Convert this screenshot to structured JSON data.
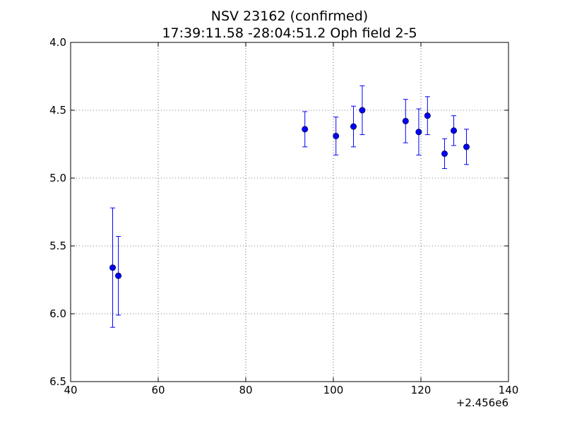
{
  "chart_data": {
    "type": "scatter",
    "title": "NSV 23162 (confirmed)",
    "subtitle": "17:39:11.58 -28:04:51.2 Oph field 2-5",
    "xlabel": "",
    "ylabel": "",
    "x_offset_label": "+2.456e6",
    "xlim": [
      40,
      140
    ],
    "ylim": [
      6.5,
      4.0
    ],
    "y_inverted": true,
    "grid": true,
    "x_ticks": [
      "40",
      "60",
      "80",
      "100",
      "120",
      "140"
    ],
    "y_ticks": [
      "4.0",
      "4.5",
      "5.0",
      "5.5",
      "6.0",
      "6.5"
    ],
    "marker_color": "#0000ff",
    "series": [
      {
        "points": [
          {
            "x": 49.6,
            "y": 5.66,
            "err": 0.44
          },
          {
            "x": 50.9,
            "y": 5.72,
            "err": 0.29
          },
          {
            "x": 93.5,
            "y": 4.64,
            "err": 0.13
          },
          {
            "x": 100.6,
            "y": 4.69,
            "err": 0.14
          },
          {
            "x": 104.6,
            "y": 4.62,
            "err": 0.15
          },
          {
            "x": 106.6,
            "y": 4.5,
            "err": 0.18
          },
          {
            "x": 116.5,
            "y": 4.58,
            "err": 0.16
          },
          {
            "x": 119.5,
            "y": 4.66,
            "err": 0.17
          },
          {
            "x": 121.5,
            "y": 4.54,
            "err": 0.14
          },
          {
            "x": 125.4,
            "y": 4.82,
            "err": 0.11
          },
          {
            "x": 127.5,
            "y": 4.65,
            "err": 0.11
          },
          {
            "x": 130.4,
            "y": 4.77,
            "err": 0.13
          }
        ]
      }
    ]
  }
}
